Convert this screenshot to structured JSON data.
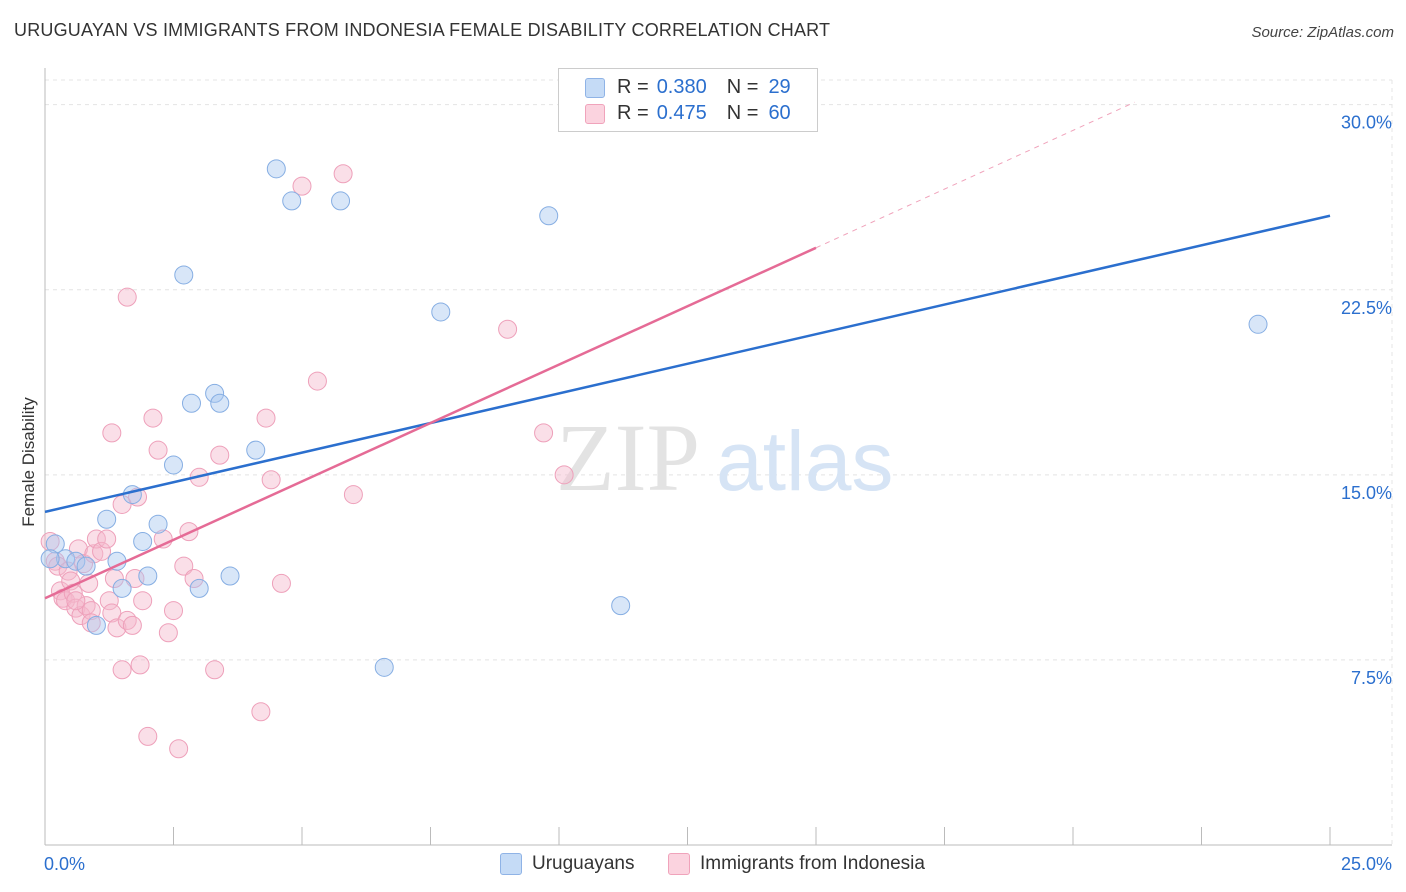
{
  "title": "URUGUAYAN VS IMMIGRANTS FROM INDONESIA FEMALE DISABILITY CORRELATION CHART",
  "source": "Source: ZipAtlas.com",
  "watermark": {
    "zip": "ZIP",
    "atlas": "atlas"
  },
  "legend_top": [
    {
      "r_label": "R =",
      "r_value": "0.380",
      "n_label": "N =",
      "n_value": "29"
    },
    {
      "r_label": "R =",
      "r_value": "0.475",
      "n_label": "N =",
      "n_value": "60"
    }
  ],
  "legend_bottom": [
    "Uruguayans",
    "Immigrants from Indonesia"
  ],
  "colors": {
    "blue": "#a8c8f0",
    "blue_line": "#2b6fce",
    "pink": "#f5b8cb",
    "pink_line": "#e56b96",
    "axis_text": "#2b6fce"
  },
  "chart_data": {
    "type": "scatter",
    "title": "URUGUAYAN VS IMMIGRANTS FROM INDONESIA FEMALE DISABILITY CORRELATION CHART",
    "xlabel": "",
    "ylabel": "Female Disability",
    "xlim": [
      0,
      25
    ],
    "ylim": [
      0,
      31
    ],
    "x_tick_labels": [
      "0.0%",
      "25.0%"
    ],
    "y_ticks": [
      7.5,
      15.0,
      22.5,
      30.0
    ],
    "y_tick_labels": [
      "7.5%",
      "15.0%",
      "22.5%",
      "30.0%"
    ],
    "series": [
      {
        "name": "Uruguayans",
        "R": 0.38,
        "N": 29,
        "trend": {
          "x0": 0,
          "y0": 13.5,
          "x1": 25,
          "y1": 25.5
        },
        "points": [
          [
            0.2,
            12.2
          ],
          [
            0.4,
            11.6
          ],
          [
            0.6,
            11.5
          ],
          [
            0.8,
            11.3
          ],
          [
            1.0,
            8.9
          ],
          [
            1.2,
            13.2
          ],
          [
            1.4,
            11.5
          ],
          [
            1.5,
            10.4
          ],
          [
            1.7,
            14.2
          ],
          [
            1.9,
            12.3
          ],
          [
            2.0,
            10.9
          ],
          [
            2.2,
            13.0
          ],
          [
            2.5,
            15.4
          ],
          [
            2.7,
            23.1
          ],
          [
            2.85,
            17.9
          ],
          [
            3.0,
            10.4
          ],
          [
            3.3,
            18.3
          ],
          [
            3.4,
            17.9
          ],
          [
            3.6,
            10.9
          ],
          [
            4.1,
            16.0
          ],
          [
            4.5,
            27.4
          ],
          [
            4.8,
            26.1
          ],
          [
            5.75,
            26.1
          ],
          [
            6.6,
            7.2
          ],
          [
            7.7,
            21.6
          ],
          [
            9.8,
            25.5
          ],
          [
            11.2,
            9.7
          ],
          [
            23.6,
            21.1
          ],
          [
            0.1,
            11.6
          ]
        ]
      },
      {
        "name": "Immigrants from Indonesia",
        "R": 0.475,
        "N": 60,
        "trend": {
          "x0": 0,
          "y0": 10.0,
          "x1": 15,
          "y1": 24.2
        },
        "trend_dashed": {
          "x0": 15,
          "y0": 24.2,
          "x1": 21.2,
          "y1": 30.1
        },
        "points": [
          [
            0.1,
            12.3
          ],
          [
            0.2,
            11.5
          ],
          [
            0.25,
            11.3
          ],
          [
            0.3,
            10.3
          ],
          [
            0.35,
            10.0
          ],
          [
            0.4,
            9.9
          ],
          [
            0.45,
            11.1
          ],
          [
            0.5,
            10.7
          ],
          [
            0.55,
            10.2
          ],
          [
            0.6,
            9.6
          ],
          [
            0.65,
            12.0
          ],
          [
            0.7,
            9.3
          ],
          [
            0.75,
            11.4
          ],
          [
            0.8,
            9.7
          ],
          [
            0.85,
            10.6
          ],
          [
            0.9,
            9.5
          ],
          [
            0.95,
            11.8
          ],
          [
            1.0,
            12.4
          ],
          [
            1.1,
            11.9
          ],
          [
            1.2,
            12.4
          ],
          [
            1.25,
            9.9
          ],
          [
            1.3,
            9.4
          ],
          [
            1.35,
            10.8
          ],
          [
            1.4,
            8.8
          ],
          [
            1.5,
            13.8
          ],
          [
            1.6,
            9.1
          ],
          [
            1.7,
            8.9
          ],
          [
            1.75,
            10.8
          ],
          [
            1.8,
            14.1
          ],
          [
            1.85,
            7.3
          ],
          [
            1.9,
            9.9
          ],
          [
            2.0,
            4.4
          ],
          [
            2.1,
            17.3
          ],
          [
            2.2,
            16.0
          ],
          [
            2.3,
            12.4
          ],
          [
            2.4,
            8.6
          ],
          [
            2.5,
            9.5
          ],
          [
            2.6,
            3.9
          ],
          [
            2.7,
            11.3
          ],
          [
            2.8,
            12.7
          ],
          [
            2.9,
            10.8
          ],
          [
            3.0,
            14.9
          ],
          [
            3.3,
            7.1
          ],
          [
            3.4,
            15.8
          ],
          [
            4.2,
            5.4
          ],
          [
            4.3,
            17.3
          ],
          [
            4.4,
            14.8
          ],
          [
            4.6,
            10.6
          ],
          [
            5.3,
            18.8
          ],
          [
            5.8,
            27.2
          ],
          [
            6.0,
            14.2
          ],
          [
            9.0,
            20.9
          ],
          [
            9.7,
            16.7
          ],
          [
            10.1,
            15.0
          ],
          [
            1.3,
            16.7
          ],
          [
            1.6,
            22.2
          ],
          [
            1.5,
            7.1
          ],
          [
            0.9,
            9.0
          ],
          [
            0.6,
            9.9
          ],
          [
            5.0,
            26.7
          ]
        ]
      }
    ]
  }
}
